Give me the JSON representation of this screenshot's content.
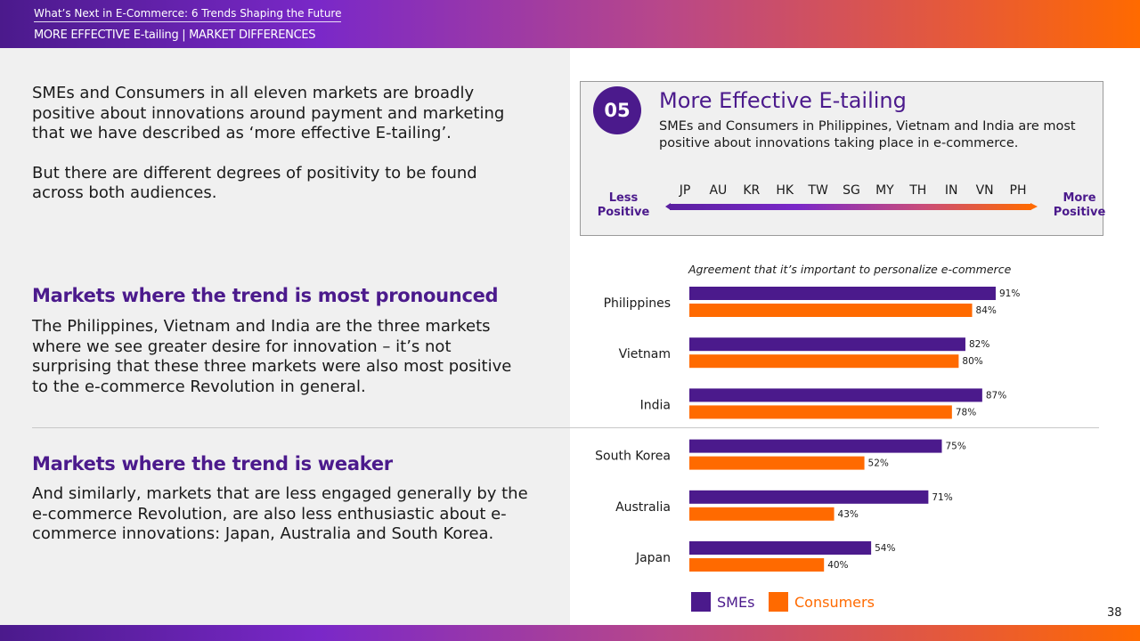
{
  "header": {
    "title": "What’s Next in E-Commerce: 6 Trends Shaping the Future",
    "subtitle": "MORE EFFECTIVE E-tailing | MARKET DIFFERENCES"
  },
  "intro": {
    "p1": "SMEs and Consumers in all eleven markets are broadly positive about innovations around payment and marketing that we have described as ‘more effective E-tailing’.",
    "p2": "But there are different degrees of positivity to be found across both audiences."
  },
  "sections": [
    {
      "heading": "Markets where the trend is most pronounced",
      "body": "The Philippines, Vietnam and India are the three markets where we see greater desire for innovation – it’s not surprising that these three markets were also most positive to the e-commerce Revolution in general."
    },
    {
      "heading": "Markets where the trend is weaker",
      "body": "And similarly, markets that are less engaged generally by the e-commerce Revolution, are also less enthusiastic about e-commerce innovations: Japan, Australia and South Korea."
    }
  ],
  "trend_box": {
    "number": "05",
    "title": "More Effective E-tailing",
    "description": "SMEs and Consumers in Philippines, Vietnam and India are most positive about innovations taking place in e-commerce.",
    "less_label": "Less Positive",
    "more_label": "More Positive",
    "markets": [
      "JP",
      "AU",
      "KR",
      "HK",
      "TW",
      "SG",
      "MY",
      "TH",
      "IN",
      "VN",
      "PH"
    ]
  },
  "chart_data": {
    "type": "bar",
    "orientation": "horizontal",
    "title": "Agreement that it’s important to personalize e-commerce",
    "categories": [
      "Philippines",
      "Vietnam",
      "India",
      "South Korea",
      "Australia",
      "Japan"
    ],
    "series": [
      {
        "name": "SMEs",
        "values": [
          91,
          82,
          87,
          75,
          71,
          54
        ],
        "color": "#4b1a8c"
      },
      {
        "name": "Consumers",
        "values": [
          84,
          80,
          78,
          52,
          43,
          40
        ],
        "color": "#ff6a00"
      }
    ],
    "value_suffix": "%",
    "legend_position": "bottom"
  },
  "page_number": "38"
}
